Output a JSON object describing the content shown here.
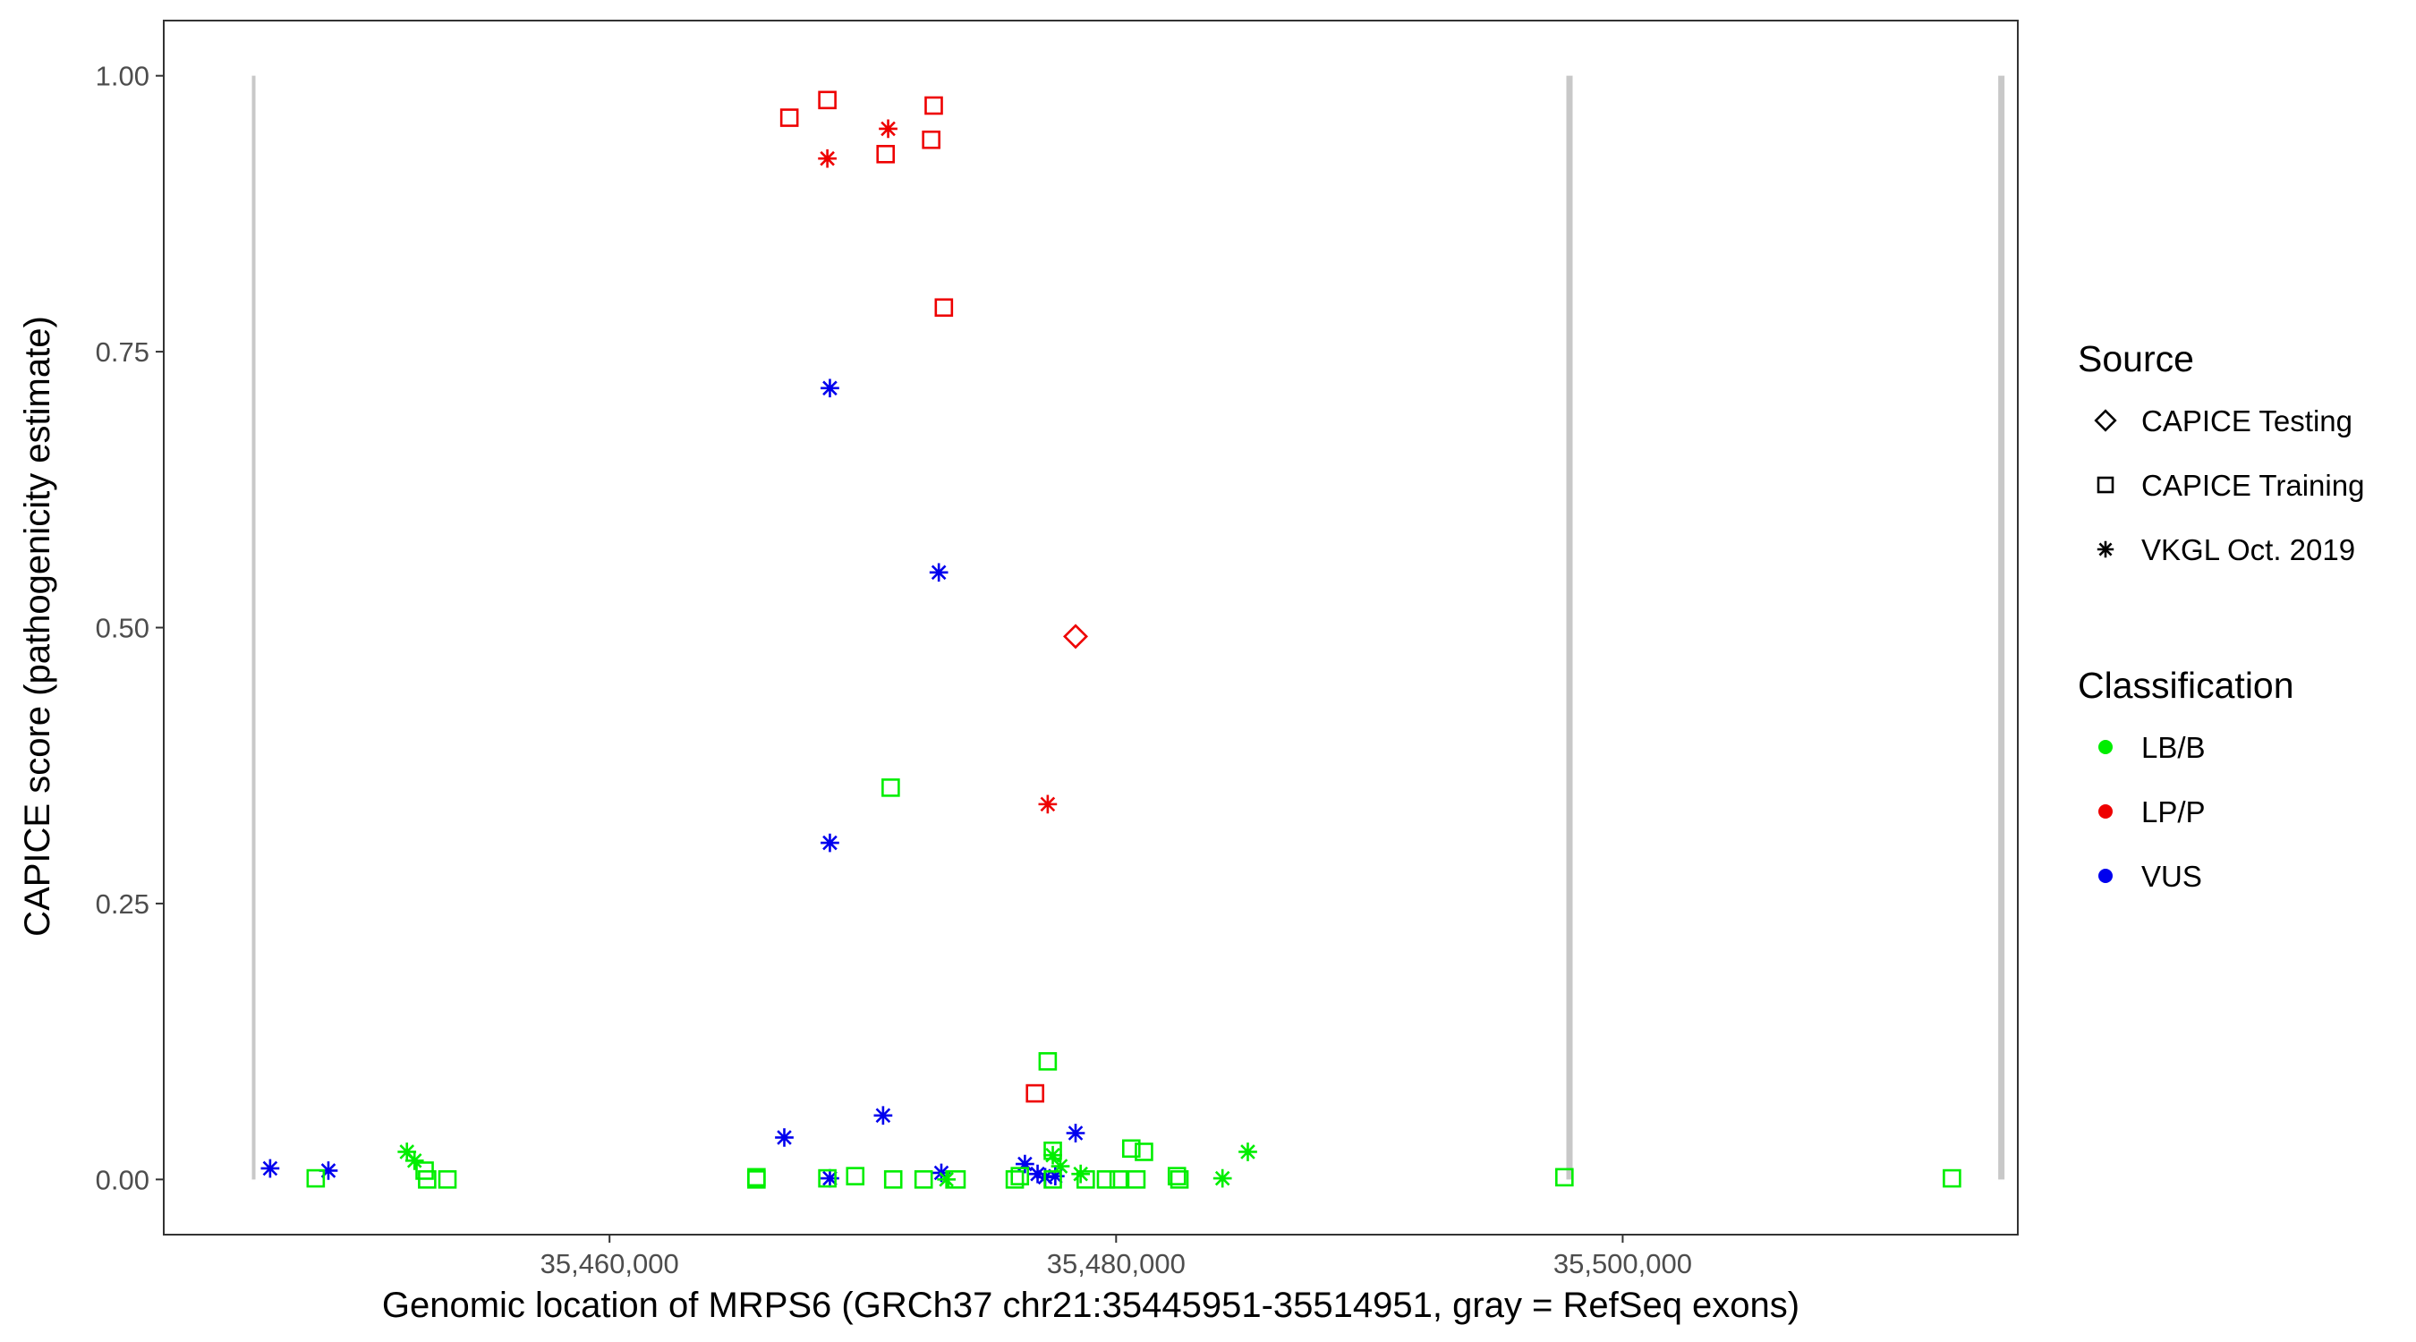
{
  "chart_data": {
    "type": "scatter",
    "title": "",
    "xlabel": "Genomic location of MRPS6 (GRCh37 chr21:35445951-35514951, gray = RefSeq exons)",
    "ylabel": "CAPICE score (pathogenicity estimate)",
    "xlim": [
      35442400,
      35515600
    ],
    "ylim": [
      -0.05,
      1.05
    ],
    "x_ticks": [
      35460000,
      35480000,
      35500000
    ],
    "x_tick_labels": [
      "35,460,000",
      "35,480,000",
      "35,500,000"
    ],
    "y_ticks": [
      0,
      0.25,
      0.5,
      0.75,
      1.0
    ],
    "y_tick_labels": [
      "0.00",
      "0.25",
      "0.50",
      "0.75",
      "1.00"
    ],
    "grid": false,
    "exon_lines": [
      {
        "x": 35445951,
        "y0": 0,
        "y1": 1.0,
        "weight": "thin"
      },
      {
        "x": 35497900,
        "y0": 0,
        "y1": 1.0,
        "weight": "thick"
      },
      {
        "x": 35514951,
        "y0": 0,
        "y1": 1.0,
        "weight": "thick"
      }
    ],
    "legend": {
      "placement": "right",
      "source_title": "Source",
      "source_items": [
        {
          "label": "CAPICE Testing",
          "shape": "diamond"
        },
        {
          "label": "CAPICE Training",
          "shape": "square"
        },
        {
          "label": "VKGL Oct. 2019",
          "shape": "asterisk"
        }
      ],
      "class_title": "Classification",
      "class_items": [
        {
          "label": "LB/B",
          "color": "#00ee00"
        },
        {
          "label": "LP/P",
          "color": "#ee0000"
        },
        {
          "label": "VUS",
          "color": "#0000ee"
        }
      ]
    },
    "colors": {
      "LB/B": "#00ee00",
      "LP/P": "#ee0000",
      "VUS": "#0000ee",
      "exon": "#c8c8c8"
    },
    "series": [
      {
        "name": "CAPICE Training / LP/P",
        "shape": "square",
        "class": "LP/P",
        "x": [
          35467100,
          35468600,
          35470900,
          35472800,
          35472700,
          35473200,
          35476800
        ],
        "y": [
          0.962,
          0.978,
          0.929,
          0.973,
          0.942,
          0.79,
          0.078
        ]
      },
      {
        "name": "VKGL Oct. 2019 / LP/P",
        "shape": "asterisk",
        "class": "LP/P",
        "x": [
          35468600,
          35471000,
          35477300
        ],
        "y": [
          0.925,
          0.952,
          0.34
        ]
      },
      {
        "name": "CAPICE Testing / LP/P",
        "shape": "diamond",
        "class": "LP/P",
        "x": [
          35478400
        ],
        "y": [
          0.492
        ]
      },
      {
        "name": "VKGL Oct. 2019 / VUS",
        "shape": "asterisk",
        "class": "VUS",
        "x": [
          35446600,
          35448900,
          35466900,
          35468700,
          35468700,
          35468700,
          35470800,
          35473000,
          35473100,
          35476400,
          35476900,
          35477200,
          35477600,
          35478400
        ],
        "y": [
          0.01,
          0.008,
          0.038,
          0.717,
          0.305,
          0.001,
          0.058,
          0.55,
          0.006,
          0.014,
          0.005,
          0.002,
          0.003,
          0.042
        ]
      },
      {
        "name": "VKGL Oct. 2019 / LB/B",
        "shape": "asterisk",
        "class": "LB/B",
        "x": [
          35452000,
          35452300,
          35473300,
          35477500,
          35477800,
          35478600,
          35484200,
          35485200
        ],
        "y": [
          0.025,
          0.017,
          0.0,
          0.022,
          0.012,
          0.005,
          0.001,
          0.025
        ]
      },
      {
        "name": "CAPICE Training / LB/B",
        "shape": "square",
        "class": "LB/B",
        "x": [
          35448400,
          35452700,
          35452800,
          35453600,
          35465800,
          35465800,
          35468600,
          35469700,
          35471100,
          35471200,
          35472400,
          35473700,
          35476000,
          35476200,
          35477300,
          35477500,
          35477500,
          35478800,
          35479600,
          35480100,
          35480600,
          35480800,
          35481100,
          35482400,
          35482500,
          35497700,
          35513000
        ],
        "y": [
          0.001,
          0.008,
          0.0,
          0.0,
          0.002,
          0.0,
          0.001,
          0.003,
          0.355,
          0.0,
          0.0,
          0.0,
          0.0,
          0.003,
          0.107,
          0.026,
          0.0,
          0.0,
          0.0,
          0.0,
          0.028,
          0.0,
          0.025,
          0.003,
          0.0,
          0.002,
          0.001
        ]
      }
    ]
  }
}
